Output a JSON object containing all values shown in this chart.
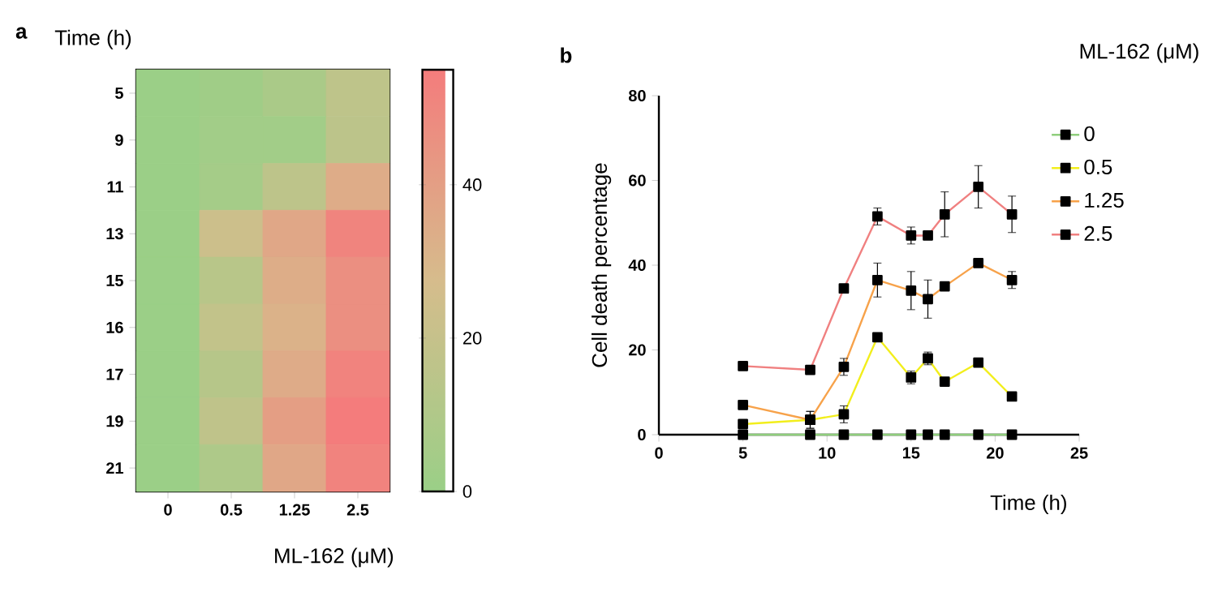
{
  "chart_data": [
    {
      "type": "heatmap",
      "title": "a",
      "xlabel": "ML-162 (μM)",
      "ylabel": "Time (h)",
      "categories": [
        "0",
        "0.5",
        "1.25",
        "2.5"
      ],
      "y_categories": [
        "5",
        "9",
        "11",
        "13",
        "15",
        "16",
        "17",
        "19",
        "21"
      ],
      "cells": [
        [
          0,
          2.5,
          7,
          16.2
        ],
        [
          0,
          3.5,
          3.5,
          15.3
        ],
        [
          0,
          4.8,
          16,
          34.5
        ],
        [
          0,
          23,
          36.5,
          51.5
        ],
        [
          0,
          13.5,
          34,
          47
        ],
        [
          0,
          18,
          32,
          47
        ],
        [
          0,
          12.5,
          35,
          52
        ],
        [
          0,
          17,
          40.5,
          58.5
        ],
        [
          0,
          9,
          36.5,
          52
        ]
      ],
      "clim": [
        0,
        55
      ],
      "cticks": [
        0,
        20,
        40
      ]
    },
    {
      "type": "line",
      "title": "b",
      "xlabel": "Time (h)",
      "ylabel": "Cell death percentage",
      "legend_title": "ML-162 (μM)",
      "x": [
        5,
        9,
        11,
        13,
        15,
        16,
        17,
        19,
        21
      ],
      "series": [
        {
          "name": "0",
          "color": "#8fce7c",
          "values": [
            0,
            0,
            0,
            0,
            0,
            0,
            0,
            0,
            0
          ]
        },
        {
          "name": "0.5",
          "color": "#f2ee1c",
          "values": [
            2.5,
            3.5,
            4.8,
            23,
            13.5,
            18,
            12.5,
            17,
            9
          ],
          "errors": [
            null,
            2,
            2,
            null,
            1.5,
            1.5,
            null,
            null,
            null
          ]
        },
        {
          "name": "1.25",
          "color": "#f7a24a",
          "values": [
            7,
            3.5,
            16,
            36.5,
            34,
            32,
            35,
            40.5,
            36.5
          ],
          "errors": [
            null,
            2,
            2,
            4,
            4.5,
            4.5,
            null,
            null,
            2
          ]
        },
        {
          "name": "2.5",
          "color": "#f08080",
          "values": [
            16.2,
            15.3,
            34.5,
            51.5,
            47,
            47,
            52,
            58.5,
            52
          ],
          "errors": [
            null,
            null,
            null,
            2,
            2,
            null,
            5.3,
            5,
            4.3
          ]
        }
      ],
      "xlim": [
        0,
        25
      ],
      "ylim": [
        0,
        80
      ],
      "xticks": [
        0,
        5,
        10,
        15,
        20,
        25
      ],
      "yticks": [
        0,
        20,
        40,
        60,
        80
      ],
      "legend": "right",
      "marker": "square",
      "line_style": "solid"
    }
  ]
}
